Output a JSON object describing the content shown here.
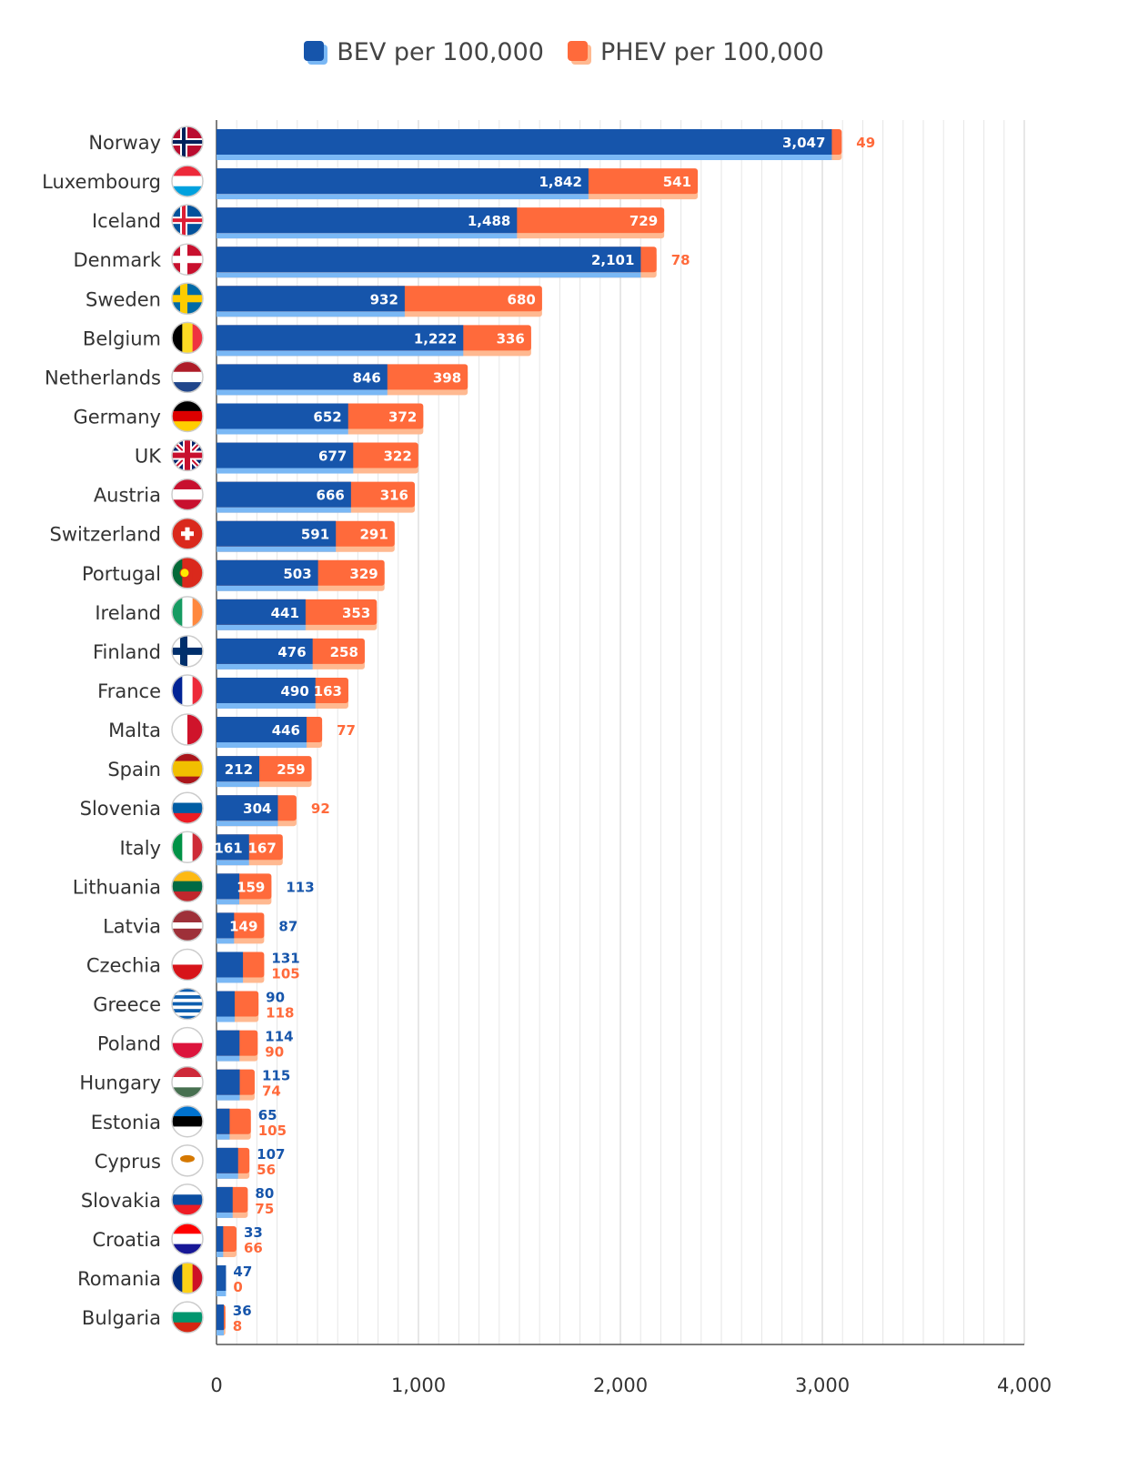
{
  "colors": {
    "bev": "#1655ab",
    "bev_shadow": "#7ab8f5",
    "phev": "#ff6a3b",
    "phev_shadow": "#ffb991",
    "grid": "#e6e6e6",
    "axis": "#555555",
    "text": "#333333"
  },
  "legend": [
    {
      "label": "BEV per 100,000",
      "color": "#1655ab"
    },
    {
      "label": "PHEV per 100,000",
      "color": "#ff6a3b"
    }
  ],
  "chart_data": {
    "type": "bar",
    "orientation": "horizontal",
    "stacked": true,
    "xlim": [
      0,
      4000
    ],
    "xticks": [
      {
        "value": 0,
        "label": "0"
      },
      {
        "value": 1000,
        "label": "1,000"
      },
      {
        "value": 2000,
        "label": "2,000"
      },
      {
        "value": 3000,
        "label": "3,000"
      },
      {
        "value": 4000,
        "label": "4,000"
      }
    ],
    "grid": true,
    "legend_position": "top",
    "categories": [
      "Norway",
      "Luxembourg",
      "Iceland",
      "Denmark",
      "Sweden",
      "Belgium",
      "Netherlands",
      "Germany",
      "UK",
      "Austria",
      "Switzerland",
      "Portugal",
      "Ireland",
      "Finland",
      "France",
      "Malta",
      "Spain",
      "Slovenia",
      "Italy",
      "Lithuania",
      "Latvia",
      "Czechia",
      "Greece",
      "Poland",
      "Hungary",
      "Estonia",
      "Cyprus",
      "Slovakia",
      "Croatia",
      "Romania",
      "Bulgaria"
    ],
    "series": [
      {
        "name": "BEV per 100,000",
        "values": [
          3047,
          1842,
          1488,
          2101,
          932,
          1222,
          846,
          652,
          677,
          666,
          591,
          503,
          441,
          476,
          490,
          446,
          212,
          304,
          161,
          113,
          87,
          131,
          90,
          114,
          115,
          65,
          107,
          80,
          33,
          47,
          36
        ],
        "labels": [
          "3,047",
          "1,842",
          "1,488",
          "2,101",
          "932",
          "1,222",
          "846",
          "652",
          "677",
          "666",
          "591",
          "503",
          "441",
          "476",
          "490",
          "446",
          "212",
          "304",
          "161",
          "113",
          "87",
          "131",
          "90",
          "114",
          "115",
          "65",
          "107",
          "80",
          "33",
          "47",
          "36"
        ]
      },
      {
        "name": "PHEV per 100,000",
        "values": [
          49,
          541,
          729,
          78,
          680,
          336,
          398,
          372,
          322,
          316,
          291,
          329,
          353,
          258,
          163,
          77,
          259,
          92,
          167,
          159,
          149,
          105,
          118,
          90,
          74,
          105,
          56,
          75,
          66,
          0,
          8
        ],
        "labels": [
          "49",
          "541",
          "729",
          "78",
          "680",
          "336",
          "398",
          "372",
          "322",
          "316",
          "291",
          "329",
          "353",
          "258",
          "163",
          "77",
          "259",
          "92",
          "167",
          "159",
          "149",
          "105",
          "118",
          "90",
          "74",
          "105",
          "56",
          "75",
          "66",
          "0",
          "8"
        ]
      }
    ]
  }
}
